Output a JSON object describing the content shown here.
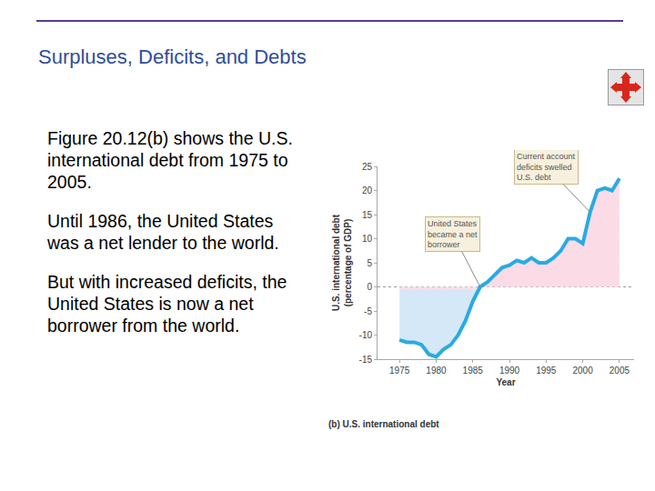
{
  "slide": {
    "title": "Surpluses, Deficits, and Debts",
    "paragraphs": [
      "Figure 20.12(b) shows the U.S. international debt from 1975 to 2005.",
      "Until 1986, the United States was a net lender to the world.",
      "But with increased deficits, the United States is now a net borrower from the world."
    ]
  },
  "chart_data": {
    "type": "line",
    "title": "(b) U.S. international debt",
    "x_label": "Year",
    "y_label": "U.S. international debt (percentage of GDP)",
    "x": [
      1975,
      1976,
      1977,
      1978,
      1979,
      1980,
      1981,
      1982,
      1983,
      1984,
      1985,
      1986,
      1987,
      1988,
      1989,
      1990,
      1991,
      1992,
      1993,
      1994,
      1995,
      1996,
      1997,
      1998,
      1999,
      2000,
      2001,
      2002,
      2003,
      2004,
      2005
    ],
    "values": [
      -11,
      -11.5,
      -11.5,
      -12,
      -14,
      -14.5,
      -13,
      -12,
      -10,
      -7,
      -3,
      0,
      1,
      2.5,
      4,
      4.5,
      5.5,
      5,
      6,
      5,
      5,
      6,
      7.5,
      10,
      10,
      9,
      15.5,
      20,
      20.5,
      20,
      22.5
    ],
    "color": "#29abe2",
    "xlim": [
      1972,
      2007
    ],
    "xticks": [
      1975,
      1980,
      1985,
      1990,
      1995,
      2000,
      2005
    ],
    "ylim": [
      -15,
      25
    ],
    "yticks": [
      -15,
      -10,
      -5,
      0,
      5,
      10,
      15,
      20,
      25
    ],
    "grid": false,
    "annotations": [
      {
        "text": "United States became a net borrower",
        "x": 1986,
        "y": 0
      },
      {
        "text": "Current account deficits swelled U.S. debt",
        "x": 2001,
        "y": 15.5
      }
    ]
  }
}
